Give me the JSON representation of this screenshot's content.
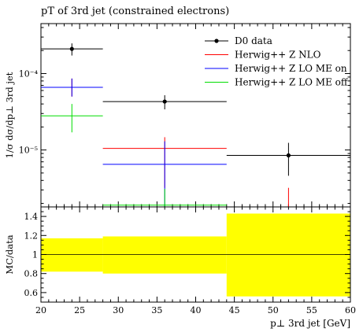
{
  "chart_data": {
    "type": "scatter",
    "title": "pT of 3rd jet (constrained electrons)",
    "ylabel": "1/σ dσ/dp⊥ 3rd jet",
    "xlabel": "p⊥ 3rd jet [GeV]",
    "ratio_ylabel": "MC/data",
    "xlim": [
      20,
      60
    ],
    "ylim_log": [
      1.8e-06,
      0.00045
    ],
    "ratio_ylim": [
      0.5,
      1.5
    ],
    "x_ticks": [
      20,
      25,
      30,
      35,
      40,
      45,
      50,
      55,
      60
    ],
    "y_major_ticks": [
      1e-05,
      0.0001
    ],
    "y_major_labels": [
      "10⁻⁵",
      "10⁻⁴"
    ],
    "ratio_ticks": [
      0.6,
      0.8,
      1.0,
      1.2,
      1.4
    ],
    "ratio_tick_labels": [
      "0.6",
      "0.8",
      "1",
      "1.2",
      "1.4"
    ],
    "bins": [
      [
        20,
        28
      ],
      [
        28,
        44
      ],
      [
        44,
        60
      ]
    ],
    "legend_position": "top-right",
    "series": [
      {
        "name": "D0 data",
        "color": "#000000",
        "style": "marker",
        "x": [
          24,
          36,
          52
        ],
        "y": [
          0.00021,
          4.3e-05,
          8.5e-06
        ],
        "y_err_low": [
          3.8e-05,
          9e-06,
          3.9e-06
        ],
        "y_err_high": [
          3.8e-05,
          9e-06,
          3.9e-06
        ]
      },
      {
        "name": "Herwig++ Z NLO",
        "color": "#ff0000",
        "style": "bin",
        "y": [
          6.6e-05,
          1.05e-05,
          1e-06
        ],
        "y_err_low": [
          1.6e-05,
          7.3e-06,
          0
        ],
        "y_err_high": [
          2e-05,
          4.2e-06,
          2.2e-06
        ]
      },
      {
        "name": "Herwig++ Z LO ME on",
        "color": "#0000ff",
        "style": "bin",
        "y": [
          6.6e-05,
          6.5e-06,
          1e-06
        ],
        "y_err_low": [
          1.6e-05,
          4.7e-06,
          0
        ],
        "y_err_high": [
          2e-05,
          6.5e-06,
          0
        ]
      },
      {
        "name": "Herwig++ Z LO ME off",
        "color": "#00dd00",
        "style": "bin",
        "y": [
          2.8e-05,
          1.9e-06,
          1e-06
        ],
        "y_err_low": [
          1.1e-05,
          1e-07,
          0
        ],
        "y_err_high": [
          1.2e-05,
          1.2e-06,
          0
        ]
      }
    ],
    "ratio_band": {
      "color": "#ffff00",
      "low": [
        0.82,
        0.8,
        0.56
      ],
      "high": [
        1.17,
        1.19,
        1.43
      ]
    }
  }
}
